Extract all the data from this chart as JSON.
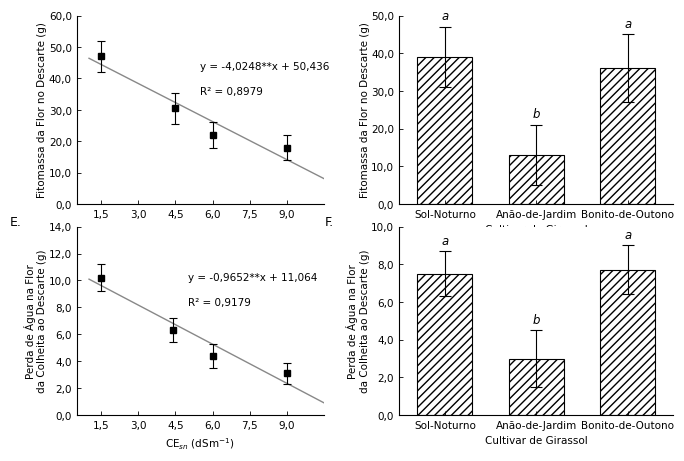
{
  "panel_E_scatter": {
    "x": [
      1.5,
      4.5,
      6.0,
      9.0
    ],
    "y": [
      47.0,
      30.5,
      22.0,
      18.0
    ],
    "yerr": [
      5.0,
      5.0,
      4.0,
      4.0
    ],
    "equation": "y = -4,0248**x + 50,436",
    "r2": "R² = 0,8979",
    "xlabel": "CE$_{sn}$ (dS m$^{-1}$)",
    "ylabel": "Fitomassa da Flor no Descarte (g)",
    "ylim": [
      0,
      60
    ],
    "xlim": [
      0.5,
      10.5
    ],
    "yticks": [
      0.0,
      10.0,
      20.0,
      30.0,
      40.0,
      50.0,
      60.0
    ],
    "xticks": [
      1.5,
      3.0,
      4.5,
      6.0,
      7.5,
      9.0
    ],
    "label": ""
  },
  "panel_bar_top": {
    "categories": [
      "Sol-Noturno",
      "Anão-de-Jardim",
      "Bonito-de-Outono"
    ],
    "values": [
      39.0,
      13.0,
      36.0
    ],
    "yerr": [
      8.0,
      8.0,
      9.0
    ],
    "letters": [
      "a",
      "b",
      "a"
    ],
    "xlabel": "Cultivar de Girassol",
    "ylabel": "Fitomassa da Flor no Descarte (g)",
    "ylim": [
      0,
      50
    ],
    "yticks": [
      0.0,
      10.0,
      20.0,
      30.0,
      40.0,
      50.0
    ],
    "label": ""
  },
  "panel_F_scatter": {
    "x": [
      1.5,
      4.4,
      6.0,
      9.0
    ],
    "y": [
      10.2,
      6.3,
      4.4,
      3.1
    ],
    "yerr": [
      1.0,
      0.9,
      0.9,
      0.8
    ],
    "equation": "y = -0,9652**x + 11,064",
    "r2": "R² = 0,9179",
    "xlabel": "CE$_{sn}$ (dSm$^{-1}$)",
    "ylabel": "Perda de Água na Flor\nda Colheita ao Descarte (g)",
    "ylim": [
      0,
      14
    ],
    "xlim": [
      0.5,
      10.5
    ],
    "yticks": [
      0.0,
      2.0,
      4.0,
      6.0,
      8.0,
      10.0,
      12.0,
      14.0
    ],
    "xticks": [
      1.5,
      3.0,
      4.5,
      6.0,
      7.5,
      9.0
    ],
    "label": "E."
  },
  "panel_bar_bottom": {
    "categories": [
      "Sol-Noturno",
      "Anão-de-Jardim",
      "Bonito-de-Outono"
    ],
    "values": [
      7.5,
      3.0,
      7.7
    ],
    "yerr": [
      1.2,
      1.5,
      1.3
    ],
    "letters": [
      "a",
      "b",
      "a"
    ],
    "xlabel": "Cultivar de Girassol",
    "ylabel": "Perda de Água na Flor\nda Colheita ao Descarte (g)",
    "ylim": [
      0,
      10
    ],
    "yticks": [
      0.0,
      2.0,
      4.0,
      6.0,
      8.0,
      10.0
    ],
    "label": "F."
  },
  "hatch_pattern": "////",
  "bar_color": "white",
  "bar_edgecolor": "black",
  "marker": "s",
  "markersize": 5,
  "linecolor": "#888888",
  "fontsize": 7.5,
  "tick_fontsize": 7.5,
  "label_fontsize": 8,
  "eq_fontsize": 7.5
}
